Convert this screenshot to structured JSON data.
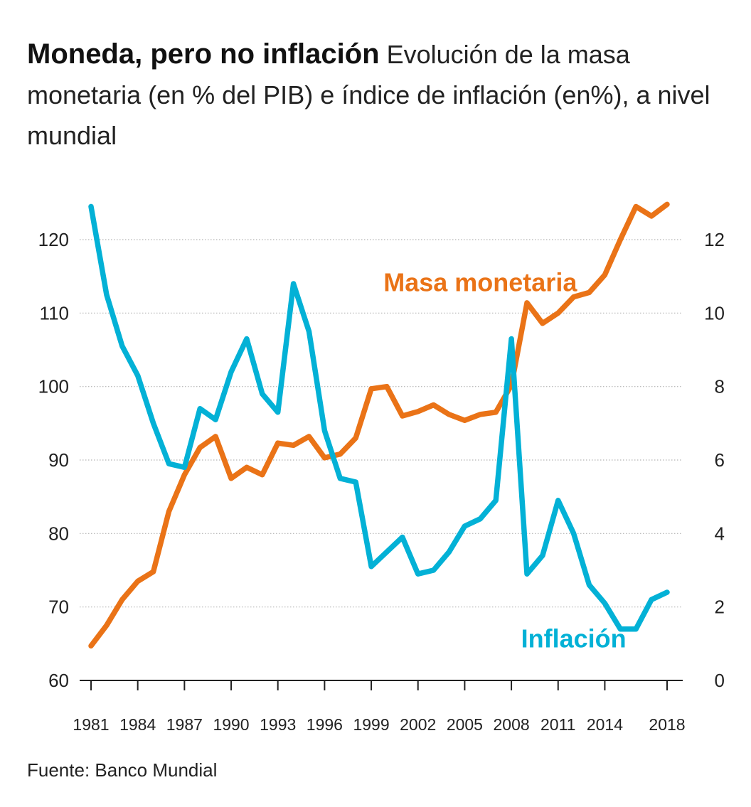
{
  "header": {
    "title": "Moneda, pero no inflación",
    "subtitle": "Evolución de la masa monetaria (en % del PIB) e índice de inflación (en%), a nivel mundial"
  },
  "source": "Fuente: Banco Mundial",
  "colors": {
    "masa": "#ea7317",
    "inflacion": "#03b1d6",
    "grid": "#b5b5b5",
    "axis": "#222222"
  },
  "chart_data": {
    "type": "line",
    "title": "Moneda, pero no inflación",
    "x_ticks": [
      1981,
      1984,
      1987,
      1990,
      1993,
      1996,
      1999,
      2002,
      2005,
      2008,
      2011,
      2014,
      2018
    ],
    "xlim": [
      1981,
      2018
    ],
    "y_left": {
      "ticks": [
        60,
        70,
        80,
        90,
        100,
        110,
        120
      ],
      "lim": [
        60,
        120
      ]
    },
    "y_right": {
      "ticks": [
        0,
        2,
        4,
        6,
        8,
        10,
        12
      ],
      "lim": [
        0,
        12
      ]
    },
    "grid": true,
    "series": [
      {
        "name": "Masa monetaria",
        "axis": "left",
        "x": [
          1981,
          1982,
          1983,
          1984,
          1985,
          1986,
          1987,
          1988,
          1989,
          1990,
          1991,
          1992,
          1993,
          1994,
          1995,
          1996,
          1997,
          1998,
          1999,
          2000,
          2001,
          2002,
          2003,
          2004,
          2005,
          2006,
          2007,
          2008,
          2009,
          2010,
          2011,
          2012,
          2013,
          2014,
          2015,
          2016,
          2017,
          2018
        ],
        "values": [
          64.7,
          67.5,
          71.0,
          73.5,
          74.8,
          83.0,
          88.0,
          91.7,
          93.2,
          87.5,
          89.0,
          88.0,
          92.3,
          92.0,
          93.2,
          90.3,
          90.8,
          93.0,
          99.7,
          100.0,
          96.0,
          96.6,
          97.5,
          96.2,
          95.4,
          96.2,
          96.5,
          100.2,
          111.4,
          108.6,
          110.0,
          112.2,
          112.8,
          115.2,
          120.0,
          124.5,
          123.2,
          124.8
        ]
      },
      {
        "name": "Inflación",
        "axis": "right",
        "x": [
          1981,
          1982,
          1983,
          1984,
          1985,
          1986,
          1987,
          1988,
          1989,
          1990,
          1991,
          1992,
          1993,
          1994,
          1995,
          1996,
          1997,
          1998,
          1999,
          2000,
          2001,
          2002,
          2003,
          2004,
          2005,
          2006,
          2007,
          2008,
          2009,
          2010,
          2011,
          2012,
          2013,
          2014,
          2015,
          2016,
          2017,
          2018
        ],
        "values": [
          12.9,
          10.5,
          9.1,
          8.3,
          7.0,
          5.9,
          5.8,
          7.4,
          7.1,
          8.4,
          9.3,
          7.8,
          7.3,
          10.8,
          9.5,
          6.8,
          5.5,
          5.4,
          3.1,
          3.5,
          3.9,
          2.9,
          3.0,
          3.5,
          4.2,
          4.4,
          4.9,
          9.3,
          2.9,
          3.4,
          4.9,
          4.0,
          2.6,
          2.1,
          1.4,
          1.4,
          2.2,
          2.4
        ]
      }
    ],
    "annotations": [
      {
        "text": "Masa monetaria",
        "x": 2006,
        "y_left": 113,
        "color": "#ea7317"
      },
      {
        "text": "Inflación",
        "x": 2012,
        "y_left": 64.5,
        "color": "#03b1d6"
      }
    ]
  }
}
